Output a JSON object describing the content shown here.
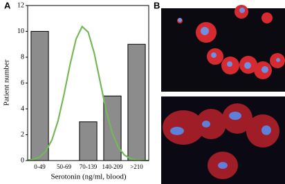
{
  "chart_data": {
    "type": "bar",
    "panel_label": "A",
    "image_panel_label": "B",
    "y_label": "Patient number",
    "x_label": "Serotonin (ng/ml, blood)",
    "categories": [
      "0-49",
      "50-69",
      "70-139",
      "140-209",
      ">210"
    ],
    "values": [
      10,
      0,
      3,
      5,
      9
    ],
    "color": "#8c8c8c",
    "ylim": [
      0,
      12
    ],
    "yticks": [
      0,
      2,
      4,
      6,
      8,
      10,
      12
    ],
    "curve": {
      "color": "#74b85a",
      "x": [
        -0.5,
        -0.25,
        0,
        0.25,
        0.5,
        0.75,
        1,
        1.25,
        1.5,
        1.75,
        2,
        2.25,
        2.5,
        2.75,
        3,
        3.25,
        3.5,
        3.75,
        4,
        4.25,
        4.5
      ],
      "values": [
        0.03,
        0.1,
        0.28,
        0.72,
        1.59,
        3.05,
        5.11,
        7.43,
        9.41,
        10.37,
        9.94,
        8.31,
        6.04,
        3.81,
        2.1,
        1.01,
        0.42,
        0.15,
        0.05,
        0.01,
        0
      ]
    }
  }
}
